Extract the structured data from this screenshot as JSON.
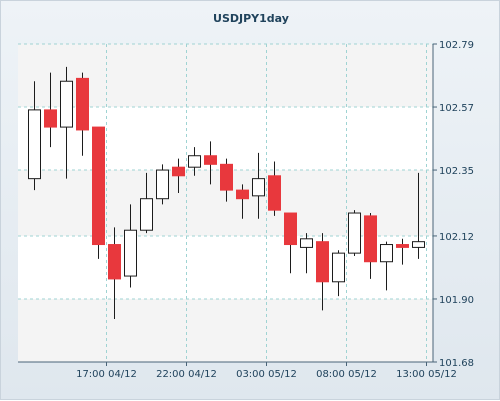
{
  "chart_data": {
    "type": "candlestick",
    "title": "USDJPY1day",
    "xlabel": "",
    "ylabel": "",
    "ylim": [
      101.68,
      102.79
    ],
    "y_ticks": [
      "102.79",
      "102.57",
      "102.35",
      "102.12",
      "101.90",
      "101.68"
    ],
    "y_tick_values": [
      102.79,
      102.57,
      102.35,
      102.12,
      101.9,
      101.68
    ],
    "x_ticks": [
      "17:00 04/12",
      "22:00 04/12",
      "03:00 05/12",
      "08:00 05/12",
      "13:00 05/12"
    ],
    "x_tick_positions": [
      4.5,
      9.5,
      14.5,
      19.5,
      24.5
    ],
    "grid": true,
    "up_color": "#ffffff",
    "down_color": "#e8383d",
    "candles": [
      {
        "o": 102.32,
        "h": 102.66,
        "l": 102.28,
        "c": 102.56
      },
      {
        "o": 102.56,
        "h": 102.69,
        "l": 102.43,
        "c": 102.5
      },
      {
        "o": 102.5,
        "h": 102.71,
        "l": 102.32,
        "c": 102.66
      },
      {
        "o": 102.67,
        "h": 102.69,
        "l": 102.4,
        "c": 102.49
      },
      {
        "o": 102.5,
        "h": 102.5,
        "l": 102.04,
        "c": 102.09
      },
      {
        "o": 102.09,
        "h": 102.15,
        "l": 101.83,
        "c": 101.97
      },
      {
        "o": 101.98,
        "h": 102.23,
        "l": 101.94,
        "c": 102.14
      },
      {
        "o": 102.14,
        "h": 102.34,
        "l": 102.13,
        "c": 102.25
      },
      {
        "o": 102.25,
        "h": 102.37,
        "l": 102.23,
        "c": 102.35
      },
      {
        "o": 102.36,
        "h": 102.39,
        "l": 102.27,
        "c": 102.33
      },
      {
        "o": 102.36,
        "h": 102.43,
        "l": 102.33,
        "c": 102.4
      },
      {
        "o": 102.4,
        "h": 102.45,
        "l": 102.3,
        "c": 102.37
      },
      {
        "o": 102.37,
        "h": 102.39,
        "l": 102.24,
        "c": 102.28
      },
      {
        "o": 102.28,
        "h": 102.3,
        "l": 102.18,
        "c": 102.25
      },
      {
        "o": 102.26,
        "h": 102.41,
        "l": 102.18,
        "c": 102.32
      },
      {
        "o": 102.33,
        "h": 102.38,
        "l": 102.19,
        "c": 102.21
      },
      {
        "o": 102.2,
        "h": 102.2,
        "l": 101.99,
        "c": 102.09
      },
      {
        "o": 102.08,
        "h": 102.13,
        "l": 101.99,
        "c": 102.11
      },
      {
        "o": 102.1,
        "h": 102.13,
        "l": 101.86,
        "c": 101.96
      },
      {
        "o": 101.96,
        "h": 102.07,
        "l": 101.91,
        "c": 102.06
      },
      {
        "o": 102.06,
        "h": 102.21,
        "l": 102.05,
        "c": 102.2
      },
      {
        "o": 102.19,
        "h": 102.2,
        "l": 101.97,
        "c": 102.03
      },
      {
        "o": 102.03,
        "h": 102.1,
        "l": 101.93,
        "c": 102.09
      },
      {
        "o": 102.09,
        "h": 102.11,
        "l": 102.02,
        "c": 102.08
      },
      {
        "o": 102.08,
        "h": 102.34,
        "l": 102.04,
        "c": 102.1
      }
    ]
  }
}
